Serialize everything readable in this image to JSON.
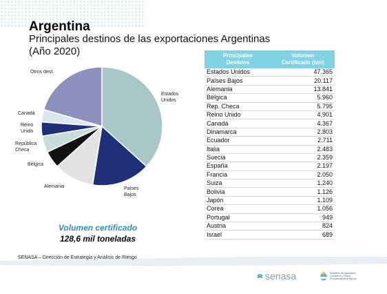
{
  "slide": {
    "title": "Argentina",
    "subtitle": "Principales  destinos de las exportaciones Argentinas",
    "subtitle2": "(Año 2020)",
    "volume_title": "Volumen certificado",
    "volume_value": "128,6 mil toneladas",
    "footer": "SENASA – Dirección de Estrategia  y Análisis de Riesgo",
    "logo_text": "senasa",
    "ministry_text": "Ministerio de Agricultura, Ganadería y Pesca · Presidencia de la Nación"
  },
  "colors": {
    "header_bg": "#7fd3e3",
    "volume_title": "#2f8fb0"
  },
  "chart_data": [
    {
      "type": "pie",
      "title": "",
      "slices": [
        {
          "label": "Estados\nUnidos",
          "value": 47.365,
          "color": "#a8c8c8"
        },
        {
          "label": "Países\nBajos",
          "value": 20.117,
          "color": "#1f2f7a"
        },
        {
          "label": "Alemania",
          "value": 13.841,
          "color": "#e2e2e2"
        },
        {
          "label": "Bélgica",
          "value": 5.96,
          "color": "#111111"
        },
        {
          "label": "República\nCheca",
          "value": 5.795,
          "color": "#c8dcdc"
        },
        {
          "label": "Reino\nUnido",
          "value": 4.901,
          "color": "#1f2f7a"
        },
        {
          "label": "Canadá",
          "value": 4.367,
          "color": "#dce8f0"
        },
        {
          "label": "Otros dest.",
          "value": 26.3,
          "color": "#8e90be"
        }
      ]
    },
    {
      "type": "table",
      "headers": [
        "Principales\nDestinos",
        "Volumen\nCertificado (ton)"
      ],
      "rows": [
        [
          "Estados Unidos",
          "47.365"
        ],
        [
          "Países Bajos",
          "20.117"
        ],
        [
          "Alemania",
          "13.841"
        ],
        [
          "Bélgica",
          "5.960"
        ],
        [
          "Rep. Checa",
          "5.795"
        ],
        [
          "Reino Unido",
          "4.901"
        ],
        [
          "Canadá",
          "4.367"
        ],
        [
          "Dinamarca",
          "2.803"
        ],
        [
          "Ecuador",
          "2.711"
        ],
        [
          "Italia",
          "2.483"
        ],
        [
          "Suecia",
          "2.359"
        ],
        [
          "España",
          "2.197"
        ],
        [
          "Francia",
          "2.050"
        ],
        [
          "Suiza",
          "1.240"
        ],
        [
          "Bolivia",
          "1.126"
        ],
        [
          "Japón",
          "1.109"
        ],
        [
          "Corea",
          "1.056"
        ],
        [
          "Portugal",
          "949"
        ],
        [
          "Austria",
          "824"
        ],
        [
          "Israel",
          "689"
        ]
      ]
    }
  ]
}
